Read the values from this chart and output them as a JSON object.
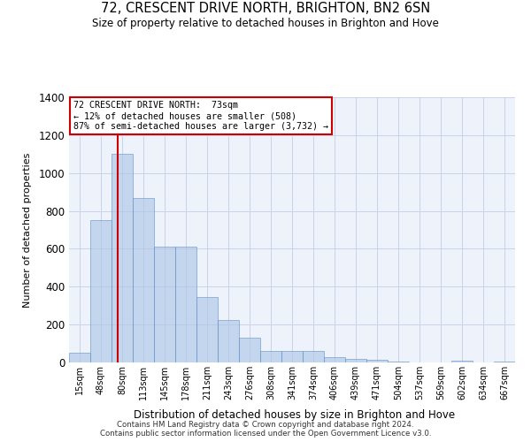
{
  "title": "72, CRESCENT DRIVE NORTH, BRIGHTON, BN2 6SN",
  "subtitle": "Size of property relative to detached houses in Brighton and Hove",
  "xlabel": "Distribution of detached houses by size in Brighton and Hove",
  "ylabel": "Number of detached properties",
  "footnote1": "Contains HM Land Registry data © Crown copyright and database right 2024.",
  "footnote2": "Contains public sector information licensed under the Open Government Licence v3.0.",
  "annotation_title": "72 CRESCENT DRIVE NORTH:  73sqm",
  "annotation_line1": "← 12% of detached houses are smaller (508)",
  "annotation_line2": "87% of semi-detached houses are larger (3,732) →",
  "categories": [
    "15sqm",
    "48sqm",
    "80sqm",
    "113sqm",
    "145sqm",
    "178sqm",
    "211sqm",
    "243sqm",
    "276sqm",
    "308sqm",
    "341sqm",
    "374sqm",
    "406sqm",
    "439sqm",
    "471sqm",
    "504sqm",
    "537sqm",
    "569sqm",
    "602sqm",
    "634sqm",
    "667sqm"
  ],
  "values": [
    50,
    750,
    1100,
    870,
    610,
    610,
    345,
    225,
    130,
    60,
    62,
    62,
    28,
    18,
    12,
    6,
    2,
    0,
    8,
    2,
    5
  ],
  "bar_color": "#aec6e8",
  "bar_edge_color": "#5b8ec4",
  "bar_alpha": 0.65,
  "grid_color": "#c8d4e8",
  "bg_color": "#eef2fa",
  "annotation_box_color": "#ffffff",
  "annotation_box_edge": "#cc0000",
  "property_line_color": "#cc0000",
  "ylim": [
    0,
    1400
  ],
  "yticks": [
    0,
    200,
    400,
    600,
    800,
    1000,
    1200,
    1400
  ]
}
